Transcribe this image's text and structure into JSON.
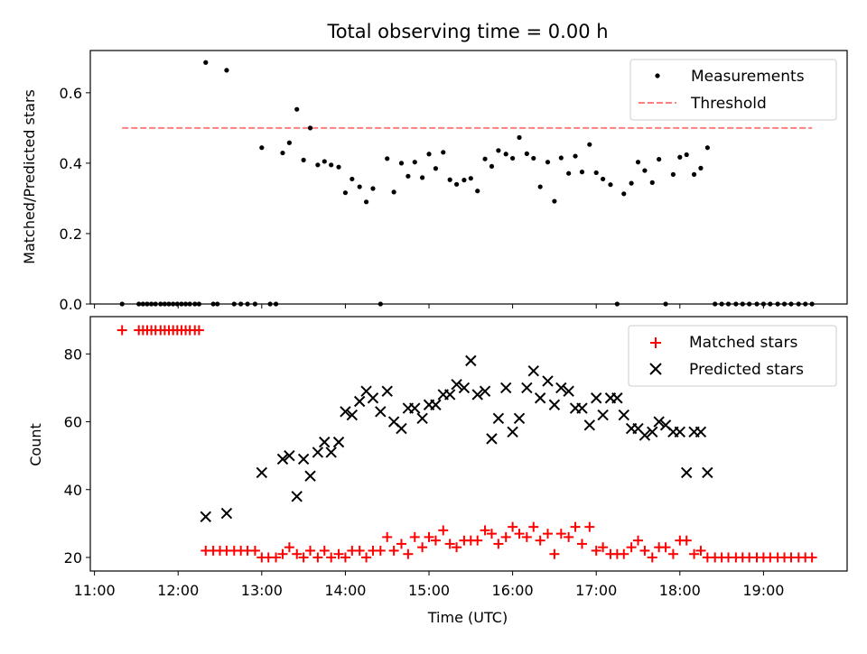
{
  "chart_data": [
    {
      "type": "scatter",
      "title": "Total observing time = 0.00 h",
      "ylabel": "Matched/Predicted stars",
      "xlabel": "",
      "xlim": [
        10.95,
        20.0
      ],
      "ylim": [
        0,
        0.72
      ],
      "x_ticks": [
        11,
        12,
        13,
        14,
        15,
        16,
        17,
        18,
        19
      ],
      "y_ticks": [
        0.0,
        0.2,
        0.4,
        0.6
      ],
      "y_tick_labels": [
        "0.0",
        "0.2",
        "0.4",
        "0.6"
      ],
      "legend_placement": "top-right",
      "colors": {
        "measurements": "#000000",
        "threshold": "#ff7f7f"
      },
      "series": [
        {
          "name": "Measurements",
          "marker": "dot",
          "x": [
            11.33,
            11.53,
            11.58,
            11.63,
            11.68,
            11.73,
            11.79,
            11.84,
            11.89,
            11.94,
            11.99,
            12.04,
            12.09,
            12.14,
            12.2,
            12.25,
            12.33,
            12.42,
            12.47,
            12.58,
            12.67,
            12.75,
            12.83,
            12.92,
            13.0,
            13.1,
            13.17,
            13.25,
            13.33,
            13.42,
            13.5,
            13.58,
            13.67,
            13.75,
            13.83,
            13.92,
            14.0,
            14.08,
            14.17,
            14.25,
            14.33,
            14.42,
            14.5,
            14.58,
            14.67,
            14.75,
            14.83,
            14.92,
            15.0,
            15.08,
            15.17,
            15.25,
            15.33,
            15.42,
            15.5,
            15.58,
            15.67,
            15.75,
            15.83,
            15.92,
            16.0,
            16.08,
            16.17,
            16.25,
            16.33,
            16.42,
            16.5,
            16.58,
            16.67,
            16.75,
            16.83,
            16.92,
            17.0,
            17.08,
            17.17,
            17.25,
            17.33,
            17.42,
            17.5,
            17.58,
            17.67,
            17.75,
            17.83,
            17.92,
            18.0,
            18.08,
            18.17,
            18.25,
            18.33,
            18.42,
            18.5,
            18.58,
            18.67,
            18.75,
            18.83,
            18.92,
            19.0,
            19.08,
            19.17,
            19.25,
            19.33,
            19.42,
            19.5,
            19.58
          ],
          "y": [
            0.0,
            0.0,
            0.0,
            0.0,
            0.0,
            0.0,
            0.0,
            0.0,
            0.0,
            0.0,
            0.0,
            0.0,
            0.0,
            0.0,
            0.0,
            0.0,
            0.686,
            0.0,
            0.0,
            0.664,
            0.0,
            0.0,
            0.0,
            0.0,
            0.444,
            0.0,
            0.0,
            0.429,
            0.458,
            0.553,
            0.409,
            0.5,
            0.395,
            0.405,
            0.395,
            0.389,
            0.316,
            0.355,
            0.333,
            0.29,
            0.328,
            0.0,
            0.413,
            0.318,
            0.4,
            0.363,
            0.403,
            0.359,
            0.426,
            0.385,
            0.431,
            0.353,
            0.34,
            0.352,
            0.357,
            0.321,
            0.412,
            0.391,
            0.436,
            0.426,
            0.414,
            0.473,
            0.427,
            0.414,
            0.333,
            0.403,
            0.292,
            0.415,
            0.371,
            0.42,
            0.375,
            0.453,
            0.373,
            0.355,
            0.339,
            0.0,
            0.313,
            0.343,
            0.403,
            0.379,
            0.345,
            0.411,
            0.0,
            0.368,
            0.417,
            0.424,
            0.368,
            0.386,
            0.444,
            0.0,
            0.0,
            0.0,
            0.0,
            0.0,
            0.0,
            0.0,
            0.0,
            0.0,
            0.0,
            0.0,
            0.0,
            0.0,
            0.0,
            0.0
          ]
        },
        {
          "name": "Threshold",
          "style": "dashed",
          "x": [
            11.33,
            19.58
          ],
          "y": [
            0.5,
            0.5
          ]
        }
      ]
    },
    {
      "type": "scatter",
      "title": "",
      "xlabel": "Time (UTC)",
      "ylabel": "Count",
      "xlim": [
        10.95,
        20.0
      ],
      "ylim": [
        16,
        91
      ],
      "x_ticks": [
        11,
        12,
        13,
        14,
        15,
        16,
        17,
        18,
        19
      ],
      "x_tick_labels": [
        "11:00",
        "12:00",
        "13:00",
        "14:00",
        "15:00",
        "16:00",
        "17:00",
        "18:00",
        "19:00"
      ],
      "y_ticks": [
        20,
        40,
        60,
        80
      ],
      "legend_placement": "top-right",
      "colors": {
        "matched": "#ff0000",
        "predicted": "#000000"
      },
      "series": [
        {
          "name": "Matched stars",
          "marker": "plus",
          "x": [
            11.33,
            11.53,
            11.58,
            11.63,
            11.68,
            11.73,
            11.79,
            11.84,
            11.89,
            11.94,
            11.99,
            12.04,
            12.09,
            12.14,
            12.2,
            12.25,
            12.33,
            12.42,
            12.5,
            12.58,
            12.67,
            12.75,
            12.83,
            12.92,
            13.0,
            13.08,
            13.17,
            13.25,
            13.33,
            13.42,
            13.5,
            13.58,
            13.67,
            13.75,
            13.83,
            13.92,
            14.0,
            14.08,
            14.17,
            14.25,
            14.33,
            14.42,
            14.5,
            14.58,
            14.67,
            14.75,
            14.83,
            14.92,
            15.0,
            15.08,
            15.17,
            15.25,
            15.33,
            15.42,
            15.5,
            15.58,
            15.67,
            15.75,
            15.83,
            15.92,
            16.0,
            16.08,
            16.17,
            16.25,
            16.33,
            16.42,
            16.5,
            16.58,
            16.67,
            16.75,
            16.83,
            16.92,
            17.0,
            17.08,
            17.17,
            17.25,
            17.33,
            17.42,
            17.5,
            17.58,
            17.67,
            17.75,
            17.83,
            17.92,
            18.0,
            18.08,
            18.17,
            18.25,
            18.33,
            18.42,
            18.5,
            18.58,
            18.67,
            18.75,
            18.83,
            18.92,
            19.0,
            19.08,
            19.17,
            19.25,
            19.33,
            19.42,
            19.5,
            19.58
          ],
          "y": [
            87,
            87,
            87,
            87,
            87,
            87,
            87,
            87,
            87,
            87,
            87,
            87,
            87,
            87,
            87,
            87,
            22,
            22,
            22,
            22,
            22,
            22,
            22,
            22,
            20,
            20,
            20,
            21,
            23,
            21,
            20,
            22,
            20,
            22,
            20,
            21,
            20,
            22,
            22,
            20,
            22,
            22,
            26,
            22,
            24,
            21,
            26,
            23,
            26,
            25,
            28,
            24,
            23,
            25,
            25,
            25,
            28,
            27,
            24,
            26,
            29,
            27,
            26,
            29,
            25,
            27,
            21,
            27,
            26,
            29,
            24,
            29,
            22,
            23,
            21,
            21,
            21,
            23,
            25,
            22,
            20,
            23,
            23,
            21,
            25,
            25,
            21,
            22,
            20,
            20,
            20,
            20,
            20,
            20,
            20,
            20,
            20,
            20,
            20,
            20,
            20,
            20,
            20,
            20
          ]
        },
        {
          "name": "Predicted stars",
          "marker": "x",
          "x": [
            12.33,
            12.58,
            13.0,
            13.25,
            13.33,
            13.42,
            13.5,
            13.58,
            13.67,
            13.75,
            13.83,
            13.92,
            14.0,
            14.08,
            14.17,
            14.25,
            14.33,
            14.42,
            14.5,
            14.58,
            14.67,
            14.75,
            14.83,
            14.92,
            15.0,
            15.08,
            15.17,
            15.25,
            15.33,
            15.42,
            15.5,
            15.58,
            15.67,
            15.75,
            15.83,
            15.92,
            16.0,
            16.08,
            16.17,
            16.25,
            16.33,
            16.42,
            16.5,
            16.58,
            16.67,
            16.75,
            16.83,
            16.92,
            17.0,
            17.08,
            17.17,
            17.25,
            17.33,
            17.42,
            17.5,
            17.58,
            17.67,
            17.75,
            17.83,
            17.92,
            18.0,
            18.08,
            18.17,
            18.25,
            18.33
          ],
          "y": [
            32,
            33,
            45,
            49,
            50,
            38,
            49,
            44,
            51,
            54,
            51,
            54,
            63,
            62,
            66,
            69,
            67,
            63,
            69,
            60,
            58,
            64,
            64,
            61,
            65,
            65,
            68,
            68,
            71,
            70,
            78,
            68,
            69,
            55,
            61,
            70,
            57,
            61,
            70,
            75,
            67,
            72,
            65,
            70,
            69,
            64,
            64,
            59,
            67,
            62,
            67,
            67,
            62,
            58,
            58,
            56,
            57,
            60,
            59,
            57,
            57,
            45,
            57,
            57,
            45
          ]
        }
      ]
    }
  ]
}
